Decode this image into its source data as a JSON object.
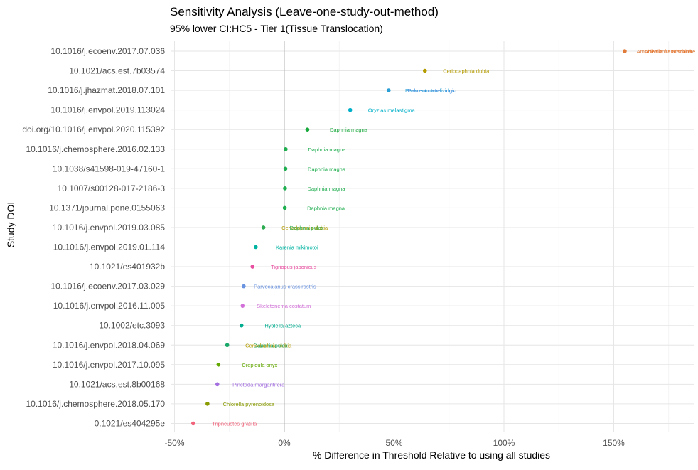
{
  "chart_data": {
    "type": "scatter",
    "title": "Sensitivity Analysis (Leave-one-study-out-method)",
    "subtitle": "95% lower CI:HC5 - Tier 1(Tissue Translocation)",
    "xlabel": "% Difference in Threshold Relative to using all studies",
    "ylabel": "Study DOI",
    "xlim": [
      -52,
      186
    ],
    "x_ticks": [
      -50,
      0,
      50,
      100,
      150
    ],
    "x_tick_labels": [
      "-50%",
      "0%",
      "50%",
      "100%",
      "150%"
    ],
    "grid": true,
    "legend": "none",
    "categories": [
      "10.1016/j.ecoenv.2017.07.036",
      "10.1021/acs.est.7b03574",
      "10.1016/j.jhazmat.2018.07.101",
      "10.1016/j.envpol.2019.113024",
      "doi.org/10.1016/j.envpol.2020.115392",
      "10.1016/j.chemosphere.2016.02.133",
      "10.1038/s41598-019-47160-1",
      "10.1007/s00128-017-2186-3",
      "10.1371/journal.pone.0155063",
      "10.1016/j.envpol.2019.03.085",
      "10.1016/j.envpol.2019.01.114",
      "10.1021/es401932b",
      "10.1016/j.ecoenv.2017.03.029",
      "10.1016/j.envpol.2016.11.005",
      "10.1002/etc.3093",
      "10.1016/j.envpol.2018.04.069",
      "10.1016/j.envpol.2017.10.095",
      "10.1021/acs.est.8b00168",
      "10.1016/j.chemosphere.2018.05.170",
      "0.1021/es404295e"
    ],
    "points": [
      {
        "x": 155,
        "color": "#e07b39",
        "labels": [
          {
            "text": "Amphibalanus amphitrite",
            "color": "#e07b39"
          },
          {
            "text": "Artemia franciscana",
            "color": "#e8752e"
          }
        ]
      },
      {
        "x": 64,
        "color": "#b39b00",
        "labels": [
          {
            "text": "Ceriodaphnia dubia",
            "color": "#b39b00"
          }
        ]
      },
      {
        "x": 47.5,
        "color": "#2a9fd6",
        "labels": [
          {
            "text": "Paracentrotus lividus",
            "color": "#2a9fd6"
          },
          {
            "text": "Palaemonetes pugio",
            "color": "#3d8fe0"
          }
        ]
      },
      {
        "x": 30,
        "color": "#00b0c8",
        "labels": [
          {
            "text": "Oryzias melastigma",
            "color": "#00b0c8"
          }
        ]
      },
      {
        "x": 10.5,
        "color": "#16a83a",
        "labels": [
          {
            "text": "Daphnia magna",
            "color": "#16a83a"
          }
        ]
      },
      {
        "x": 0.6,
        "color": "#1fae4f",
        "labels": [
          {
            "text": "Daphnia magna",
            "color": "#1fae4f"
          }
        ]
      },
      {
        "x": 0.5,
        "color": "#1fae4f",
        "labels": [
          {
            "text": "Daphnia magna",
            "color": "#1fae4f"
          }
        ]
      },
      {
        "x": 0.3,
        "color": "#1fae4f",
        "labels": [
          {
            "text": "Daphnia magna",
            "color": "#1fae4f"
          }
        ]
      },
      {
        "x": 0.2,
        "color": "#1fae4f",
        "labels": [
          {
            "text": "Daphnia magna",
            "color": "#1fae4f"
          }
        ]
      },
      {
        "x": -9.5,
        "color": "#2cab50",
        "labels": [
          {
            "text": "Ceriodaphnia dubia",
            "color": "#b39b00"
          },
          {
            "text": "Daphnia pulex",
            "color": "#2cab50"
          }
        ]
      },
      {
        "x": -13,
        "color": "#00b3a0",
        "labels": [
          {
            "text": "Karenia mikimotoi",
            "color": "#00b3a0"
          }
        ]
      },
      {
        "x": -14.5,
        "color": "#e84fa0",
        "labels": [
          {
            "text": "Tigriopus japonicus",
            "color": "#e84fa0"
          }
        ]
      },
      {
        "x": -18.5,
        "color": "#6a93e0",
        "labels": [
          {
            "text": "Parvocalanus crassirostris",
            "color": "#6a93e0"
          }
        ]
      },
      {
        "x": -19,
        "color": "#d26fd8",
        "labels": [
          {
            "text": "Skeletonema costatum",
            "color": "#d26fd8"
          }
        ]
      },
      {
        "x": -19.5,
        "color": "#00ad8e",
        "labels": [
          {
            "text": "Hyalella azteca",
            "color": "#00ad8e"
          }
        ]
      },
      {
        "x": -26,
        "color": "#1aa86a",
        "labels": [
          {
            "text": "Ceriodaphnia dubia",
            "color": "#b39b00"
          },
          {
            "text": "Daphnia pulex",
            "color": "#1aa86a"
          }
        ]
      },
      {
        "x": -30,
        "color": "#63a800",
        "labels": [
          {
            "text": "Crepidula onyx",
            "color": "#63a800"
          }
        ]
      },
      {
        "x": -30.5,
        "color": "#a36fe0",
        "labels": [
          {
            "text": "Pinctada margaritifera",
            "color": "#a36fe0"
          }
        ]
      },
      {
        "x": -35,
        "color": "#8a9b00",
        "labels": [
          {
            "text": "Chlorella pyrenoidosa",
            "color": "#8a9b00"
          }
        ]
      },
      {
        "x": -41.5,
        "color": "#f0637a",
        "labels": [
          {
            "text": "Tripneustes gratilla",
            "color": "#f0637a"
          }
        ]
      }
    ]
  }
}
